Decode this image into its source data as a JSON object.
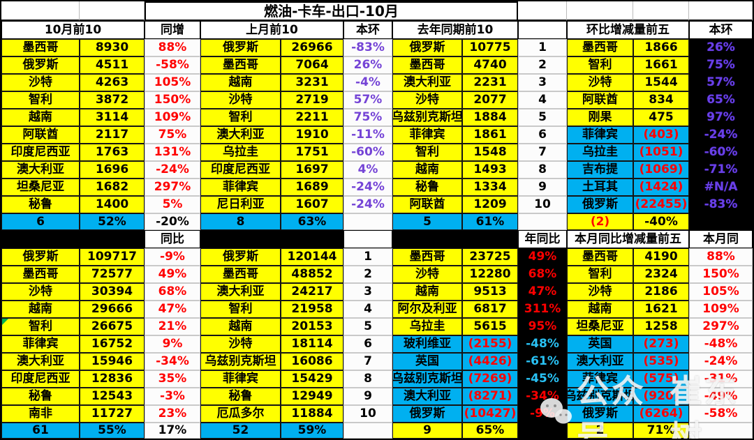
{
  "title": "燃油-卡车-出口-10月",
  "watermark": {
    "text1": "公众号",
    "text2": "崔东树"
  },
  "top": {
    "blocks": [
      {
        "header": "10月前10",
        "pct_header": "同增",
        "rows": [
          [
            "墨西哥",
            "8930",
            "88%"
          ],
          [
            "俄罗斯",
            "4511",
            "-58%"
          ],
          [
            "沙特",
            "4263",
            "105%"
          ],
          [
            "智利",
            "3872",
            "150%"
          ],
          [
            "越南",
            "3114",
            "109%"
          ],
          [
            "阿联酋",
            "2117",
            "75%"
          ],
          [
            "印度尼西亚",
            "1763",
            "131%"
          ],
          [
            "澳大利亚",
            "1696",
            "-24%"
          ],
          [
            "坦桑尼亚",
            "1682",
            "297%"
          ],
          [
            "秘鲁",
            "1400",
            "5%"
          ]
        ],
        "footer": [
          "6",
          "52%",
          "-20%"
        ]
      },
      {
        "header": "上月前10",
        "pct_header": "本环",
        "rows": [
          [
            "俄罗斯",
            "26966",
            "-83%"
          ],
          [
            "墨西哥",
            "7064",
            "26%"
          ],
          [
            "越南",
            "3231",
            "-4%"
          ],
          [
            "沙特",
            "2719",
            "57%"
          ],
          [
            "智利",
            "2211",
            "75%"
          ],
          [
            "澳大利亚",
            "1910",
            "-11%"
          ],
          [
            "乌拉圭",
            "1751",
            "-60%"
          ],
          [
            "印度尼西亚",
            "1697",
            "4%"
          ],
          [
            "菲律宾",
            "1689",
            "-24%"
          ],
          [
            "尼日利亚",
            "1607",
            "-24%"
          ]
        ],
        "footer": [
          "8",
          "63%",
          ""
        ]
      },
      {
        "header": "去年同期前10",
        "pct_header": "",
        "rows": [
          [
            "俄罗斯",
            "10775",
            "1"
          ],
          [
            "墨西哥",
            "4740",
            "2"
          ],
          [
            "澳大利亚",
            "2231",
            "3"
          ],
          [
            "沙特",
            "2077",
            "4"
          ],
          [
            "乌兹别克斯坦",
            "1884",
            "5"
          ],
          [
            "菲律宾",
            "1861",
            "6"
          ],
          [
            "智利",
            "1548",
            "7"
          ],
          [
            "越南",
            "1493",
            "8"
          ],
          [
            "秘鲁",
            "1334",
            "9"
          ],
          [
            "阿联酋",
            "1209",
            "10"
          ]
        ],
        "footer": [
          "5",
          "61%",
          ""
        ]
      },
      {
        "header": "环比增减量前五",
        "pct_header": "本环",
        "rows": [
          [
            "墨西哥",
            "1866",
            "26%"
          ],
          [
            "智利",
            "1661",
            "75%"
          ],
          [
            "沙特",
            "1544",
            "57%"
          ],
          [
            "阿联酋",
            "834",
            "65%"
          ],
          [
            "刚果",
            "475",
            "97%"
          ],
          [
            "菲律宾",
            "(403)",
            "-24%"
          ],
          [
            "乌拉圭",
            "(1051)",
            "-60%"
          ],
          [
            "吉布提",
            "(1069)",
            "-71%"
          ],
          [
            "土耳其",
            "(1424)",
            "#N/A"
          ],
          [
            "俄罗斯",
            "(22455)",
            "-83%"
          ]
        ],
        "footer": [
          "(2)",
          "-40%",
          ""
        ]
      }
    ]
  },
  "bottom": {
    "blocks": [
      {
        "header": "",
        "pct_header": "同比",
        "rows": [
          [
            "俄罗斯",
            "109717",
            "-9%"
          ],
          [
            "墨西哥",
            "72577",
            "49%"
          ],
          [
            "沙特",
            "30394",
            "68%"
          ],
          [
            "越南",
            "29666",
            "47%"
          ],
          [
            "智利",
            "26675",
            "21%",
            "tri"
          ],
          [
            "菲律宾",
            "16752",
            "9%"
          ],
          [
            "澳大利亚",
            "15946",
            "-34%"
          ],
          [
            "印度尼西亚",
            "12836",
            "35%"
          ],
          [
            "秘鲁",
            "12543",
            "-3%"
          ],
          [
            "南非",
            "11727",
            "23%"
          ]
        ],
        "footer": [
          "61",
          "55%",
          "17%"
        ]
      },
      {
        "header": "",
        "pct_header": "",
        "rows": [
          [
            "俄罗斯",
            "120144",
            "1"
          ],
          [
            "墨西哥",
            "48852",
            "2"
          ],
          [
            "澳大利亚",
            "24217",
            "3"
          ],
          [
            "智利",
            "21958",
            "4"
          ],
          [
            "越南",
            "20153",
            "5"
          ],
          [
            "沙特",
            "18114",
            "6"
          ],
          [
            "乌兹别克斯坦",
            "16086",
            "7"
          ],
          [
            "菲律宾",
            "15429",
            "8"
          ],
          [
            "秘鲁",
            "12949",
            "9"
          ],
          [
            "厄瓜多尔",
            "11884",
            "10"
          ]
        ],
        "footer": [
          "52",
          "59%",
          ""
        ]
      },
      {
        "header": "",
        "pct_header": "年同比",
        "rows": [
          [
            "墨西哥",
            "23725",
            "49%"
          ],
          [
            "沙特",
            "12280",
            "68%"
          ],
          [
            "越南",
            "9513",
            "47%"
          ],
          [
            "阿尔及利亚",
            "6817",
            "311%"
          ],
          [
            "乌拉圭",
            "5615",
            "95%"
          ],
          [
            "玻利维亚",
            "(2155)",
            "-48%",
            "c"
          ],
          [
            "英国",
            "(4426)",
            "-61%",
            "c"
          ],
          [
            "乌兹别克斯坦",
            "(7269)",
            "-45%",
            "c"
          ],
          [
            "澳大利亚",
            "(8271)",
            "-34%"
          ],
          [
            "俄罗斯",
            "(10427)",
            "-9%"
          ]
        ],
        "footer": [
          "9",
          "65%",
          ""
        ]
      },
      {
        "header": "本月同比增减量前五",
        "pct_header": "本月同",
        "rows": [
          [
            "墨西哥",
            "4190",
            "88%"
          ],
          [
            "智利",
            "2324",
            "150%"
          ],
          [
            "沙特",
            "2186",
            "105%"
          ],
          [
            "越南",
            "1621",
            "109%"
          ],
          [
            "坦桑尼亚",
            "1258",
            "297%"
          ],
          [
            "英国",
            "(273)",
            "-48%"
          ],
          [
            "澳大利亚",
            "(535)",
            "-24%"
          ],
          [
            "菲律宾",
            "(575)",
            "-31%"
          ],
          [
            "乌兹别克斯坦",
            "(920)",
            "-49%"
          ],
          [
            "俄罗斯",
            "(6264)",
            "-58%"
          ]
        ],
        "footer": [
          "2",
          "71%",
          ""
        ]
      }
    ]
  }
}
